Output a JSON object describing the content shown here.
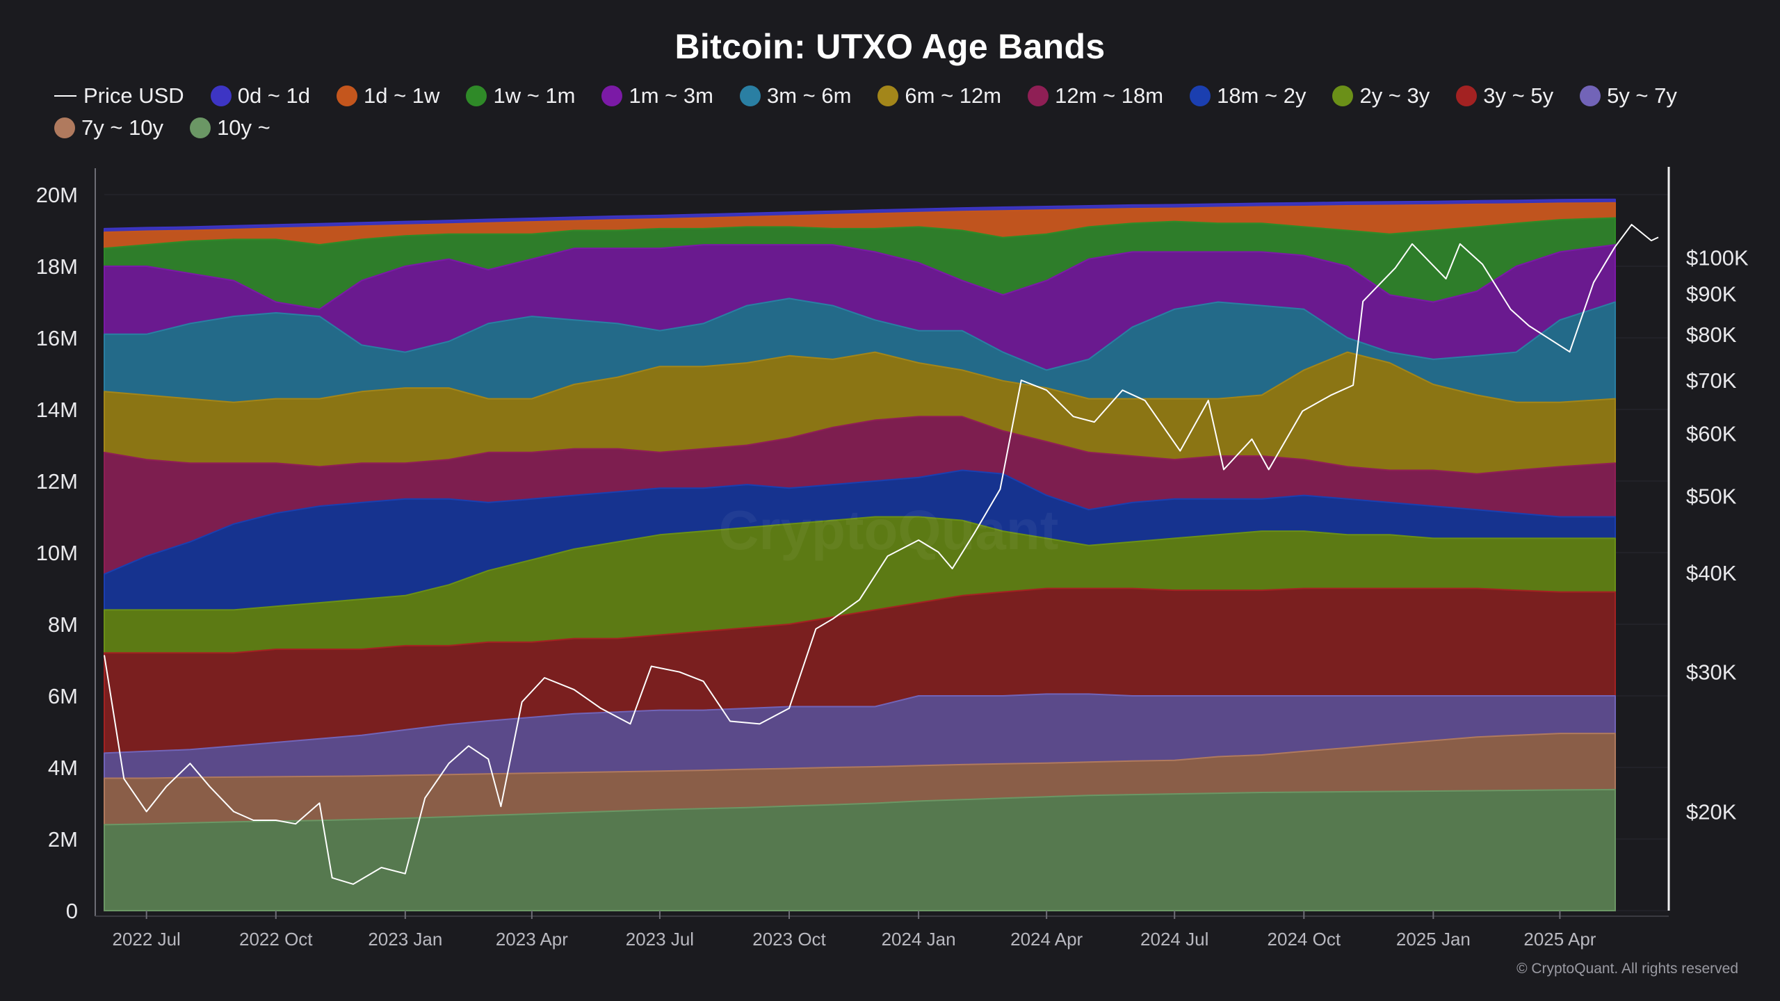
{
  "colors": {
    "background": "#1b1b1f",
    "price_line": "#ffffff",
    "grid": "#2a2a30",
    "tick_text": "#b9b9c0"
  },
  "chart_data": {
    "type": "area",
    "stacked": true,
    "title": "Bitcoin: UTXO Age Bands",
    "watermark": "CryptoQuant",
    "copyright": "© CryptoQuant. All rights reserved",
    "y_left": {
      "range": [
        0,
        20000000
      ],
      "ticks": [
        0,
        2000000,
        4000000,
        6000000,
        8000000,
        10000000,
        12000000,
        14000000,
        16000000,
        18000000,
        20000000
      ],
      "tick_labels": [
        "0",
        "2M",
        "4M",
        "6M",
        "8M",
        "10M",
        "12M",
        "14M",
        "16M",
        "18M",
        "20M"
      ]
    },
    "y_right": {
      "scale": "log",
      "range": [
        15000,
        120000
      ],
      "ticks": [
        20000,
        30000,
        40000,
        50000,
        60000,
        70000,
        80000,
        90000,
        100000
      ],
      "tick_labels": [
        "$20K",
        "$30K",
        "$40K",
        "$50K",
        "$60K",
        "$70K",
        "$80K",
        "$90K",
        "$100K"
      ]
    },
    "x_axis": {
      "range": [
        "2022-06-01",
        "2025-06-10"
      ],
      "ticks": [
        "2022-07-01",
        "2022-10-01",
        "2023-01-01",
        "2023-04-01",
        "2023-07-01",
        "2023-10-01",
        "2024-01-01",
        "2024-04-01",
        "2024-07-01",
        "2024-10-01",
        "2025-01-01",
        "2025-04-01"
      ],
      "tick_labels": [
        "2022 Jul",
        "2022 Oct",
        "2023 Jan",
        "2023 Apr",
        "2023 Jul",
        "2023 Oct",
        "2024 Jan",
        "2024 Apr",
        "2024 Jul",
        "2024 Oct",
        "2025 Jan",
        "2025 Apr"
      ]
    },
    "x": [
      "2022-06-01",
      "2022-07-01",
      "2022-08-01",
      "2022-09-01",
      "2022-10-01",
      "2022-11-01",
      "2022-12-01",
      "2023-01-01",
      "2023-02-01",
      "2023-03-01",
      "2023-04-01",
      "2023-05-01",
      "2023-06-01",
      "2023-07-01",
      "2023-08-01",
      "2023-09-01",
      "2023-10-01",
      "2023-11-01",
      "2023-12-01",
      "2024-01-01",
      "2024-02-01",
      "2024-03-01",
      "2024-04-01",
      "2024-05-01",
      "2024-06-01",
      "2024-07-01",
      "2024-08-01",
      "2024-09-01",
      "2024-10-01",
      "2024-11-01",
      "2024-12-01",
      "2025-01-01",
      "2025-02-01",
      "2025-03-01",
      "2025-04-01",
      "2025-05-01"
    ],
    "cumulative_series_top_down": [
      {
        "name": "0d ~ 1d",
        "color": "#3a34b8",
        "values": [
          19.05,
          19.08,
          19.1,
          19.13,
          19.16,
          19.19,
          19.22,
          19.25,
          19.28,
          19.31,
          19.34,
          19.37,
          19.4,
          19.42,
          19.45,
          19.48,
          19.51,
          19.54,
          19.57,
          19.6,
          19.63,
          19.65,
          19.67,
          19.69,
          19.71,
          19.72,
          19.74,
          19.76,
          19.77,
          19.79,
          19.8,
          19.81,
          19.83,
          19.84,
          19.86,
          19.87
        ]
      },
      {
        "name": "1d ~ 1w",
        "color": "#c0541e",
        "values": [
          18.95,
          18.98,
          19.0,
          19.03,
          19.06,
          19.09,
          19.12,
          19.15,
          19.18,
          19.21,
          19.24,
          19.27,
          19.3,
          19.32,
          19.35,
          19.38,
          19.41,
          19.44,
          19.47,
          19.5,
          19.53,
          19.55,
          19.57,
          19.59,
          19.61,
          19.62,
          19.64,
          19.66,
          19.67,
          19.69,
          19.7,
          19.71,
          19.73,
          19.74,
          19.76,
          19.77
        ]
      },
      {
        "name": "1w ~ 1m",
        "color": "#2e7d2a",
        "values": [
          18.5,
          18.6,
          18.7,
          18.75,
          18.75,
          18.6,
          18.75,
          18.85,
          18.9,
          18.9,
          18.9,
          19.0,
          19.0,
          19.05,
          19.05,
          19.1,
          19.1,
          19.05,
          19.05,
          19.1,
          19.0,
          18.8,
          18.9,
          19.1,
          19.2,
          19.25,
          19.2,
          19.2,
          19.1,
          19.0,
          18.9,
          19.0,
          19.1,
          19.2,
          19.3,
          19.35
        ]
      },
      {
        "name": "1m ~ 3m",
        "color": "#6a1a8f",
        "values": [
          18.0,
          18.0,
          17.8,
          17.6,
          17.0,
          16.8,
          17.6,
          18.0,
          18.2,
          17.9,
          18.2,
          18.5,
          18.5,
          18.5,
          18.6,
          18.6,
          18.6,
          18.6,
          18.4,
          18.1,
          17.6,
          17.2,
          17.6,
          18.2,
          18.4,
          18.4,
          18.4,
          18.4,
          18.3,
          18.0,
          17.2,
          17.0,
          17.3,
          18.0,
          18.4,
          18.6
        ]
      },
      {
        "name": "3m ~ 6m",
        "color": "#236a89",
        "values": [
          16.1,
          16.1,
          16.4,
          16.6,
          16.7,
          16.6,
          15.8,
          15.6,
          15.9,
          16.4,
          16.6,
          16.5,
          16.4,
          16.2,
          16.4,
          16.9,
          17.1,
          16.9,
          16.5,
          16.2,
          16.2,
          15.6,
          15.1,
          15.4,
          16.3,
          16.8,
          17.0,
          16.9,
          16.8,
          16.0,
          15.6,
          15.4,
          15.5,
          15.6,
          16.5,
          17.0
        ]
      },
      {
        "name": "6m ~ 12m",
        "color": "#8b7514",
        "values": [
          14.5,
          14.4,
          14.3,
          14.2,
          14.3,
          14.3,
          14.5,
          14.6,
          14.6,
          14.3,
          14.3,
          14.7,
          14.9,
          15.2,
          15.2,
          15.3,
          15.5,
          15.4,
          15.6,
          15.3,
          15.1,
          14.8,
          14.6,
          14.3,
          14.3,
          14.3,
          14.3,
          14.4,
          15.1,
          15.6,
          15.3,
          14.7,
          14.4,
          14.2,
          14.2,
          14.3
        ]
      },
      {
        "name": "12m ~ 18m",
        "color": "#7d1e4f",
        "values": [
          12.8,
          12.6,
          12.5,
          12.5,
          12.5,
          12.4,
          12.5,
          12.5,
          12.6,
          12.8,
          12.8,
          12.9,
          12.9,
          12.8,
          12.9,
          13.0,
          13.2,
          13.5,
          13.7,
          13.8,
          13.8,
          13.4,
          13.1,
          12.8,
          12.7,
          12.6,
          12.7,
          12.7,
          12.6,
          12.4,
          12.3,
          12.3,
          12.2,
          12.3,
          12.4,
          12.5
        ]
      },
      {
        "name": "18m ~ 2y",
        "color": "#16338f",
        "values": [
          9.4,
          9.9,
          10.3,
          10.8,
          11.1,
          11.3,
          11.4,
          11.5,
          11.5,
          11.4,
          11.5,
          11.6,
          11.7,
          11.8,
          11.8,
          11.9,
          11.8,
          11.9,
          12.0,
          12.1,
          12.3,
          12.2,
          11.6,
          11.2,
          11.4,
          11.5,
          11.5,
          11.5,
          11.6,
          11.5,
          11.4,
          11.3,
          11.2,
          11.1,
          11.0,
          11.0
        ]
      },
      {
        "name": "2y ~ 3y",
        "color": "#5c7a14",
        "values": [
          8.4,
          8.4,
          8.4,
          8.4,
          8.5,
          8.6,
          8.7,
          8.8,
          9.1,
          9.5,
          9.8,
          10.1,
          10.3,
          10.5,
          10.6,
          10.7,
          10.8,
          10.9,
          11.0,
          11.0,
          10.9,
          10.6,
          10.4,
          10.2,
          10.3,
          10.4,
          10.5,
          10.6,
          10.6,
          10.5,
          10.5,
          10.4,
          10.4,
          10.4,
          10.4,
          10.4
        ]
      },
      {
        "name": "3y ~ 5y",
        "color": "#7a1f1f",
        "values": [
          7.2,
          7.2,
          7.2,
          7.2,
          7.3,
          7.3,
          7.3,
          7.4,
          7.4,
          7.5,
          7.5,
          7.6,
          7.6,
          7.7,
          7.8,
          7.9,
          8.0,
          8.2,
          8.4,
          8.6,
          8.8,
          8.9,
          9.0,
          9.0,
          9.0,
          8.95,
          8.95,
          8.95,
          9.0,
          9.0,
          9.0,
          9.0,
          9.0,
          8.95,
          8.9,
          8.9
        ]
      },
      {
        "name": "5y ~ 7y",
        "color": "#5b4a8a",
        "values": [
          4.4,
          4.45,
          4.5,
          4.6,
          4.7,
          4.8,
          4.9,
          5.05,
          5.2,
          5.3,
          5.4,
          5.5,
          5.55,
          5.6,
          5.6,
          5.65,
          5.7,
          5.7,
          5.7,
          6.0,
          6.0,
          6.0,
          6.05,
          6.05,
          6.0,
          6.0,
          6.0,
          6.0,
          6.0,
          6.0,
          6.0,
          6.0,
          6.0,
          6.0,
          6.0,
          6.0
        ]
      },
      {
        "name": "7y ~ 10y",
        "color": "#8a5e48",
        "values": [
          3.7,
          3.7,
          3.72,
          3.73,
          3.74,
          3.75,
          3.76,
          3.78,
          3.8,
          3.82,
          3.84,
          3.86,
          3.88,
          3.9,
          3.92,
          3.95,
          3.97,
          4.0,
          4.02,
          4.05,
          4.08,
          4.1,
          4.12,
          4.15,
          4.18,
          4.2,
          4.3,
          4.35,
          4.45,
          4.55,
          4.65,
          4.75,
          4.85,
          4.9,
          4.95,
          4.95
        ]
      },
      {
        "name": "10y ~",
        "color": "#56794f",
        "values": [
          2.4,
          2.42,
          2.45,
          2.48,
          2.5,
          2.52,
          2.55,
          2.58,
          2.62,
          2.66,
          2.7,
          2.74,
          2.78,
          2.82,
          2.85,
          2.88,
          2.92,
          2.96,
          3.0,
          3.06,
          3.1,
          3.14,
          3.18,
          3.22,
          3.24,
          3.26,
          3.28,
          3.3,
          3.31,
          3.32,
          3.33,
          3.34,
          3.35,
          3.36,
          3.37,
          3.38
        ]
      }
    ],
    "price": {
      "name": "Price USD",
      "color": "#ffffff",
      "x": [
        "2022-06-01",
        "2022-06-15",
        "2022-07-01",
        "2022-07-15",
        "2022-08-01",
        "2022-08-15",
        "2022-09-01",
        "2022-09-15",
        "2022-10-01",
        "2022-10-15",
        "2022-11-01",
        "2022-11-10",
        "2022-11-25",
        "2022-12-15",
        "2023-01-01",
        "2023-01-15",
        "2023-02-01",
        "2023-02-15",
        "2023-03-01",
        "2023-03-10",
        "2023-03-25",
        "2023-04-10",
        "2023-05-01",
        "2023-05-20",
        "2023-06-10",
        "2023-06-25",
        "2023-07-15",
        "2023-08-01",
        "2023-08-20",
        "2023-09-10",
        "2023-10-01",
        "2023-10-20",
        "2023-11-01",
        "2023-11-20",
        "2023-12-10",
        "2024-01-01",
        "2024-01-15",
        "2024-01-25",
        "2024-02-10",
        "2024-02-28",
        "2024-03-14",
        "2024-04-01",
        "2024-04-20",
        "2024-05-05",
        "2024-05-25",
        "2024-06-10",
        "2024-07-05",
        "2024-07-25",
        "2024-08-05",
        "2024-08-25",
        "2024-09-06",
        "2024-09-30",
        "2024-10-20",
        "2024-11-05",
        "2024-11-12",
        "2024-11-25",
        "2024-12-05",
        "2024-12-17",
        "2025-01-10",
        "2025-01-20",
        "2025-02-05",
        "2025-02-25",
        "2025-03-10",
        "2025-04-08",
        "2025-04-25",
        "2025-05-10",
        "2025-05-22",
        "2025-06-05",
        "2025-06-10"
      ],
      "values": [
        31500,
        22000,
        20000,
        21500,
        23000,
        21500,
        20000,
        19500,
        19500,
        19300,
        20500,
        16500,
        16200,
        17000,
        16700,
        20800,
        23000,
        24200,
        23300,
        20300,
        27500,
        29500,
        28500,
        27000,
        25800,
        30500,
        30000,
        29200,
        26000,
        25800,
        27000,
        34000,
        35000,
        37000,
        42000,
        44000,
        42500,
        40500,
        45000,
        51000,
        70000,
        68000,
        63000,
        62000,
        68000,
        66000,
        57000,
        66000,
        54000,
        59000,
        54000,
        64000,
        67000,
        69000,
        88000,
        93000,
        97000,
        104000,
        94000,
        104000,
        98000,
        86000,
        82000,
        76000,
        93000,
        103000,
        110000,
        105000,
        106000
      ]
    }
  }
}
